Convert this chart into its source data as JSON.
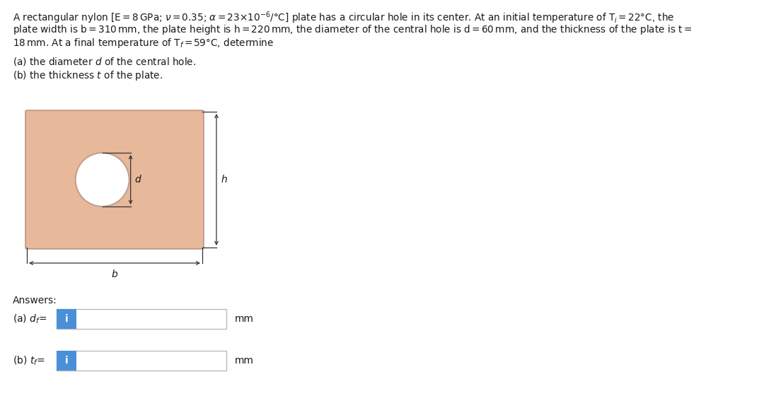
{
  "line1": "A rectangular nylon [E = 8 GPa; ν = 0.35; α = 23×10⁻⁶/°C] plate has a circular hole in its center. At an initial temperature of Tᴵ = 22°C, the",
  "line2": "plate width is b = 310 mm, the plate height is h = 220 mm, the diameter of the central hole is d = 60 mm, and the thickness of the plate is t =",
  "line3": "18 mm. At a final temperature of Tₓ = 59°C, determine",
  "part_a": "(a) the diameter d of the central hole.",
  "part_b": "(b) the thickness t of the plate.",
  "answers_label": "Answers:",
  "answer_a_label": "(a) dₓ=",
  "answer_b_label": "(b) tₓ=",
  "plate_color": "#e8b89a",
  "plate_edge_color": "#b08878",
  "hole_edge_color": "#c0a090",
  "arrow_color": "#333333",
  "blue_color": "#4a90d9",
  "box_edge_color": "#bbbbbb",
  "background_color": "#ffffff",
  "text_color": "#1a1a1a",
  "font_size_title": 9.8,
  "font_size_body": 9.8,
  "font_size_answers": 10.0
}
